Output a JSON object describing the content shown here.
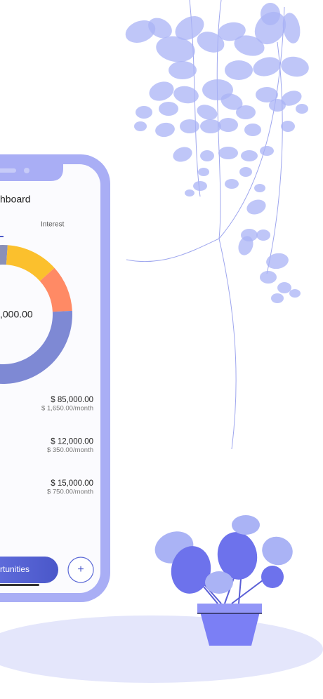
{
  "header": {
    "title": "hboard"
  },
  "tab": "Interest",
  "donut": {
    "center_value": ",000.00"
  },
  "items": [
    {
      "amount": "$ 85,000.00",
      "monthly": "$ 1,650.00/month"
    },
    {
      "amount": "$ 12,000.00",
      "monthly": "$ 350.00/month"
    },
    {
      "amount": "$ 15,000.00",
      "monthly": "$ 750.00/month"
    }
  ],
  "buttons": {
    "primary": "rtunities",
    "add": "+"
  }
}
